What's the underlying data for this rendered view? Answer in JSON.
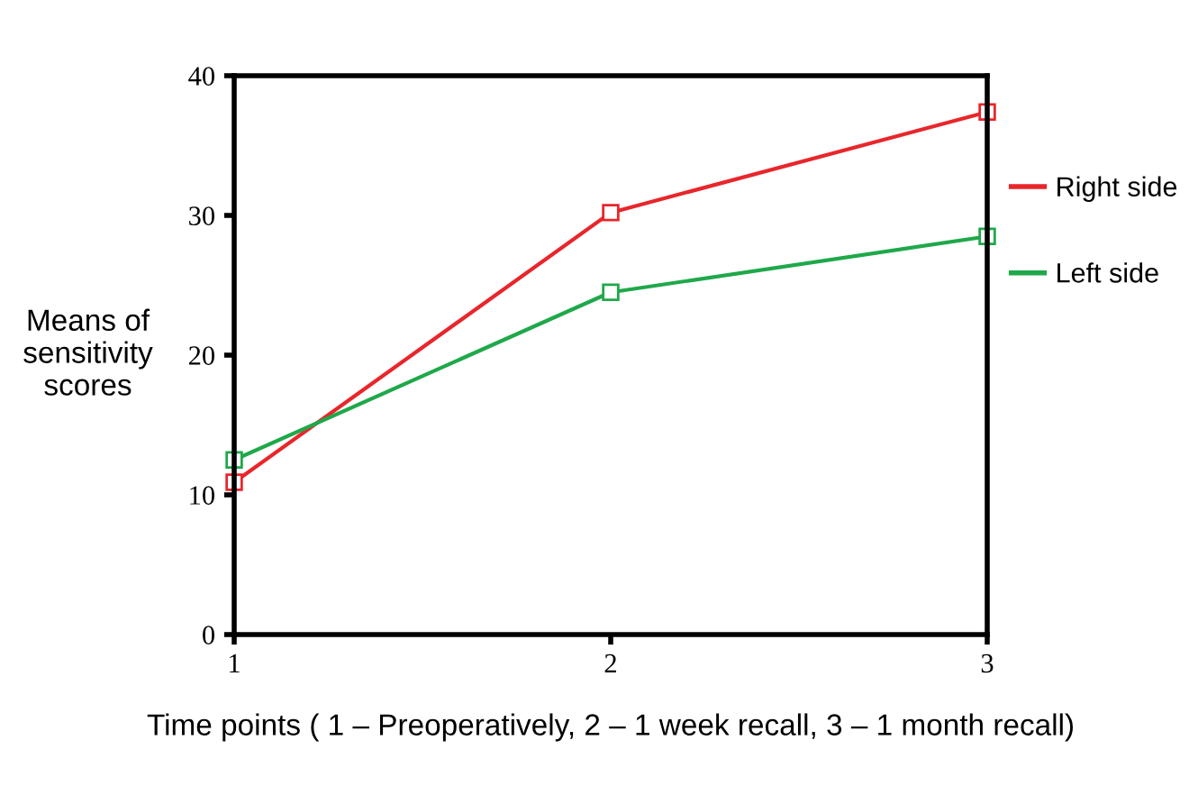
{
  "chart_data": {
    "type": "line",
    "xlabel": "Time points ( 1 – Preoperatively, 2 – 1 week recall, 3 – 1 month recall)",
    "ylabel": "Means of\nsensitivity\nscores",
    "x": [
      1,
      2,
      3
    ],
    "series": [
      {
        "name": "Right side",
        "color": "#e8262b",
        "values": [
          10.9,
          30.2,
          37.4
        ]
      },
      {
        "name": "Left side",
        "color": "#1fa84a",
        "values": [
          12.5,
          24.5,
          28.5
        ]
      }
    ],
    "xlim": [
      1,
      3
    ],
    "xticks": [
      1,
      2,
      3
    ],
    "ylim": [
      0,
      40
    ],
    "yticks": [
      0,
      10,
      20,
      30,
      40
    ],
    "marker": "square",
    "line_style": "solid",
    "legend": "right",
    "grid": false
  }
}
